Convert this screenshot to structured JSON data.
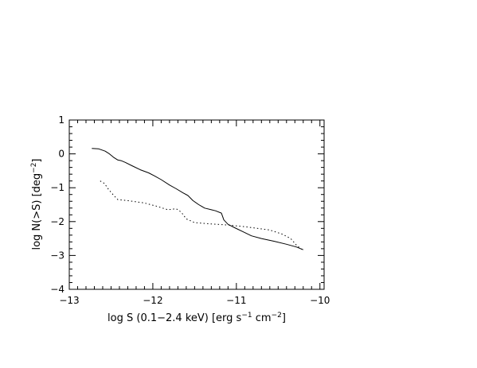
{
  "chart_data": {
    "type": "line",
    "xlabel_main": "log S  (0.1−2.4  keV)  [erg  s",
    "xlabel_sup1": "−1",
    "xlabel_mid": " cm",
    "xlabel_sup2": "−2",
    "xlabel_end": "]",
    "ylabel_main": "log  N(>S)  [deg",
    "ylabel_sup": "−2",
    "ylabel_end": "]",
    "xlim": [
      -13,
      -9.95
    ],
    "ylim": [
      -4,
      1
    ],
    "x_ticks": [
      -13,
      -12,
      -11,
      -10
    ],
    "x_tick_labels": [
      "−13",
      "−12",
      "−11",
      "−10"
    ],
    "y_ticks": [
      -4,
      -3,
      -2,
      -1,
      0,
      1
    ],
    "y_tick_labels": [
      "−4",
      "−3",
      "−2",
      "−1",
      "0",
      "1"
    ],
    "grid": false,
    "legend": "none",
    "series": [
      {
        "style": "solid",
        "points": [
          [
            -12.73,
            0.16
          ],
          [
            -12.65,
            0.15
          ],
          [
            -12.57,
            0.08
          ],
          [
            -12.52,
            0.0
          ],
          [
            -12.47,
            -0.1
          ],
          [
            -12.42,
            -0.18
          ],
          [
            -12.38,
            -0.2
          ],
          [
            -12.33,
            -0.25
          ],
          [
            -12.25,
            -0.35
          ],
          [
            -12.15,
            -0.47
          ],
          [
            -12.05,
            -0.56
          ],
          [
            -11.98,
            -0.65
          ],
          [
            -11.9,
            -0.76
          ],
          [
            -11.8,
            -0.92
          ],
          [
            -11.72,
            -1.03
          ],
          [
            -11.64,
            -1.15
          ],
          [
            -11.58,
            -1.23
          ],
          [
            -11.52,
            -1.38
          ],
          [
            -11.45,
            -1.5
          ],
          [
            -11.38,
            -1.6
          ],
          [
            -11.3,
            -1.65
          ],
          [
            -11.25,
            -1.68
          ],
          [
            -11.18,
            -1.75
          ],
          [
            -11.15,
            -1.95
          ],
          [
            -11.1,
            -2.08
          ],
          [
            -11.02,
            -2.18
          ],
          [
            -10.92,
            -2.3
          ],
          [
            -10.82,
            -2.42
          ],
          [
            -10.7,
            -2.5
          ],
          [
            -10.55,
            -2.58
          ],
          [
            -10.4,
            -2.67
          ],
          [
            -10.28,
            -2.75
          ],
          [
            -10.2,
            -2.83
          ]
        ]
      },
      {
        "style": "dotted",
        "points": [
          [
            -12.63,
            -0.8
          ],
          [
            -12.58,
            -0.87
          ],
          [
            -12.53,
            -1.05
          ],
          [
            -12.47,
            -1.22
          ],
          [
            -12.42,
            -1.35
          ],
          [
            -12.3,
            -1.38
          ],
          [
            -12.1,
            -1.45
          ],
          [
            -11.95,
            -1.55
          ],
          [
            -11.82,
            -1.65
          ],
          [
            -11.72,
            -1.62
          ],
          [
            -11.66,
            -1.72
          ],
          [
            -11.6,
            -1.92
          ],
          [
            -11.5,
            -2.03
          ],
          [
            -11.3,
            -2.07
          ],
          [
            -11.1,
            -2.1
          ],
          [
            -10.9,
            -2.15
          ],
          [
            -10.75,
            -2.2
          ],
          [
            -10.6,
            -2.25
          ],
          [
            -10.45,
            -2.37
          ],
          [
            -10.35,
            -2.5
          ],
          [
            -10.28,
            -2.7
          ],
          [
            -10.22,
            -2.82
          ]
        ]
      }
    ]
  }
}
